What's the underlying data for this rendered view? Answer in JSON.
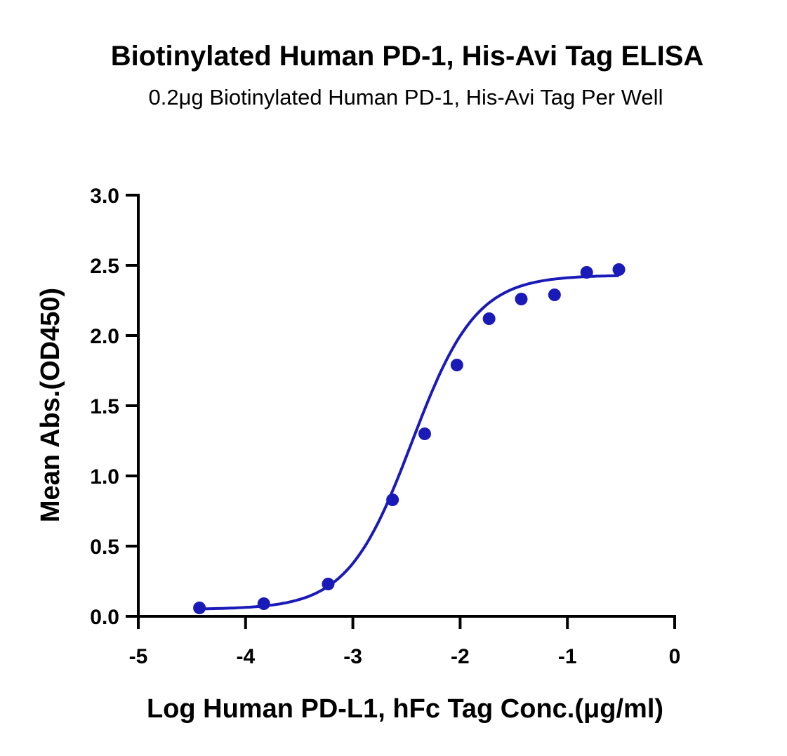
{
  "chart_data": {
    "type": "scatter",
    "title": "Biotinylated Human PD-1, His-Avi Tag ELISA",
    "subtitle": "0.2μg Biotinylated Human PD-1, His-Avi Tag Per Well",
    "xlabel": "Log Human PD-L1, hFc Tag Conc.(μg/ml)",
    "ylabel": "Mean Abs.(OD450)",
    "xlim": [
      -5,
      0
    ],
    "ylim": [
      0,
      3.0
    ],
    "xticks": [
      -5,
      -4,
      -3,
      -2,
      -1,
      0
    ],
    "xtick_labels": [
      "-5",
      "-4",
      "-3",
      "-2",
      "-1",
      "0"
    ],
    "yticks": [
      0,
      0.5,
      1.0,
      1.5,
      2.0,
      2.5,
      3.0
    ],
    "ytick_labels": [
      "0.0",
      "0.5",
      "1.0",
      "1.5",
      "2.0",
      "2.5",
      "3.0"
    ],
    "grid": false,
    "color": "#1a1ab8",
    "series": [
      {
        "x": [
          -4.43,
          -3.83,
          -3.23,
          -2.63,
          -2.33,
          -2.03,
          -1.73,
          -1.43,
          -1.12,
          -0.82,
          -0.52
        ],
        "y": [
          0.06,
          0.09,
          0.23,
          0.83,
          1.3,
          1.79,
          2.12,
          2.26,
          2.29,
          2.45,
          2.47
        ]
      }
    ],
    "fit_curve": {
      "bottom": 0.05,
      "top": 2.43,
      "logEC50": -2.45,
      "hill": 1.45
    }
  }
}
